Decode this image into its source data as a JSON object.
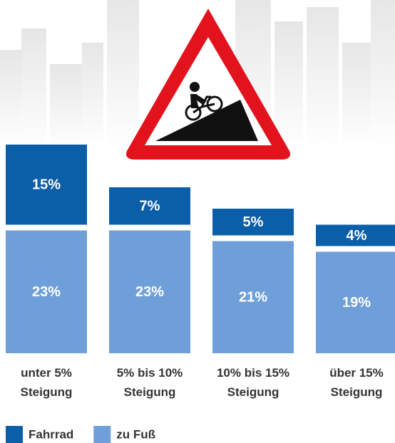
{
  "chart_data": {
    "type": "stacked_bar",
    "categories": [
      "unter 5% Steigung",
      "5% bis 10% Steigung",
      "10% bis 15% Steigung",
      "über 15% Steigung"
    ],
    "series": [
      {
        "name": "Fahrrad",
        "color": "#0b5ea8",
        "values": [
          15,
          7,
          5,
          4
        ],
        "value_labels": [
          "15%",
          "7%",
          "5%",
          "4%"
        ]
      },
      {
        "name": "zu Fuß",
        "color": "#6f9fd8",
        "values": [
          23,
          23,
          21,
          19
        ],
        "value_labels": [
          "23%",
          "23%",
          "21%",
          "19%"
        ]
      }
    ]
  }
}
